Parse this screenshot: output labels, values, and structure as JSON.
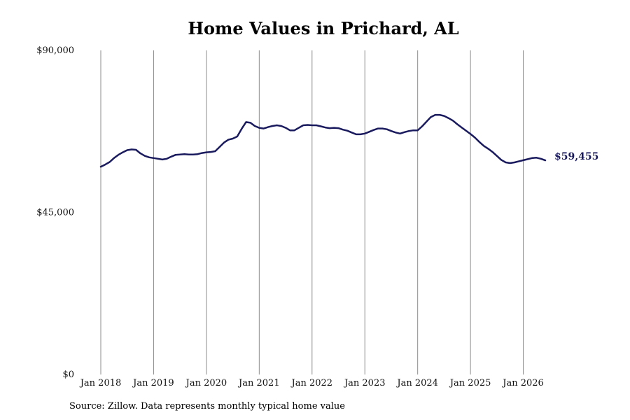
{
  "title": "Home Values in Prichard, AL",
  "source": "Source: Zillow. Data represents monthly typical home value",
  "end_label": "$59,455",
  "colors": {
    "line": "#1a1a5e",
    "grid": "#8c8c8c"
  },
  "chart_data": {
    "type": "line",
    "title": "Home Values in Prichard, AL",
    "xlabel": "",
    "ylabel": "",
    "ylim": [
      0,
      90000
    ],
    "y_ticks": [
      0,
      45000,
      90000
    ],
    "y_tick_labels": [
      "$0",
      "$45,000",
      "$90,000"
    ],
    "x_ticks": [
      "2018-01",
      "2019-01",
      "2020-01",
      "2021-01",
      "2022-01",
      "2023-01",
      "2024-01",
      "2025-01",
      "2026-01"
    ],
    "x_tick_labels": [
      "Jan 2018",
      "Jan 2019",
      "Jan 2020",
      "Jan 2021",
      "Jan 2022",
      "Jan 2023",
      "Jan 2024",
      "Jan 2025",
      "Jan 2026"
    ],
    "grid": "vertical",
    "legend": "none",
    "end_value_label": "$59,455",
    "series": [
      {
        "x": [
          "2018-01",
          "2018-02",
          "2018-03",
          "2018-04",
          "2018-05",
          "2018-06",
          "2018-07",
          "2018-08",
          "2018-09",
          "2018-10",
          "2018-11",
          "2018-12",
          "2019-01",
          "2019-02",
          "2019-03",
          "2019-04",
          "2019-05",
          "2019-06",
          "2019-07",
          "2019-08",
          "2019-09",
          "2019-10",
          "2019-11",
          "2019-12",
          "2020-01",
          "2020-02",
          "2020-03",
          "2020-04",
          "2020-05",
          "2020-06",
          "2020-07",
          "2020-08",
          "2020-09",
          "2020-10",
          "2020-11",
          "2020-12",
          "2021-01",
          "2021-02",
          "2021-03",
          "2021-04",
          "2021-05",
          "2021-06",
          "2021-07",
          "2021-08",
          "2021-09",
          "2021-10",
          "2021-11",
          "2021-12",
          "2022-01",
          "2022-02",
          "2022-03",
          "2022-04",
          "2022-05",
          "2022-06",
          "2022-07",
          "2022-08",
          "2022-09",
          "2022-10",
          "2022-11",
          "2022-12",
          "2023-01",
          "2023-02",
          "2023-03",
          "2023-04",
          "2023-05",
          "2023-06",
          "2023-07",
          "2023-08",
          "2023-09",
          "2023-10",
          "2023-11",
          "2023-12",
          "2024-01",
          "2024-02",
          "2024-03",
          "2024-04",
          "2024-05",
          "2024-06",
          "2024-07",
          "2024-08",
          "2024-09",
          "2024-10",
          "2024-11",
          "2024-12",
          "2025-01",
          "2025-02",
          "2025-03",
          "2025-04",
          "2025-05",
          "2025-06",
          "2025-07",
          "2025-08",
          "2025-09",
          "2025-10",
          "2025-11",
          "2025-12",
          "2026-01",
          "2026-02",
          "2026-03",
          "2026-04",
          "2026-05",
          "2026-06"
        ],
        "values": [
          57700,
          58300,
          59000,
          60100,
          61000,
          61700,
          62300,
          62500,
          62400,
          61400,
          60700,
          60300,
          60100,
          59900,
          59700,
          59900,
          60500,
          61000,
          61100,
          61200,
          61100,
          61100,
          61200,
          61500,
          61700,
          61800,
          62000,
          63200,
          64400,
          65200,
          65500,
          66100,
          68200,
          70100,
          69900,
          69000,
          68500,
          68300,
          68700,
          69000,
          69200,
          69000,
          68500,
          67800,
          67800,
          68500,
          69200,
          69300,
          69200,
          69200,
          68900,
          68600,
          68400,
          68500,
          68400,
          68000,
          67700,
          67200,
          66700,
          66700,
          66900,
          67400,
          67900,
          68300,
          68300,
          68100,
          67600,
          67200,
          66900,
          67300,
          67600,
          67800,
          67800,
          68900,
          70200,
          71500,
          72100,
          72100,
          71800,
          71200,
          70500,
          69500,
          68600,
          67700,
          66800,
          65800,
          64600,
          63500,
          62700,
          61800,
          60700,
          59600,
          58900,
          58700,
          58900,
          59200,
          59500,
          59800,
          60100,
          60200,
          59900,
          59455
        ]
      }
    ]
  }
}
